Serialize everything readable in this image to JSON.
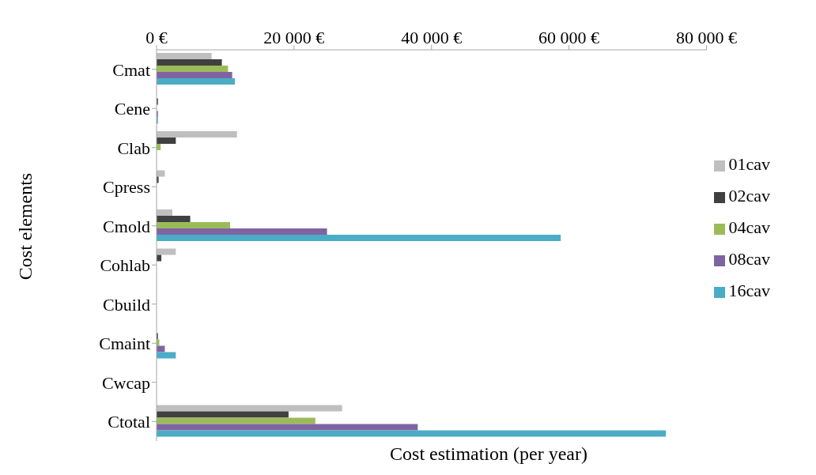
{
  "chart_data": {
    "type": "bar",
    "orientation": "horizontal",
    "xlabel": "Cost estimation (per year)",
    "ylabel": "Cost elements",
    "categories": [
      "Cmat",
      "Cene",
      "Clab",
      "Cpress",
      "Cmold",
      "Cohlab",
      "Cbuild",
      "Cmaint",
      "Cwcap",
      "Ctotal"
    ],
    "series": [
      {
        "name": "01cav",
        "color": "#bfbfbf",
        "values": [
          8000,
          0,
          11700,
          1200,
          2300,
          2800,
          0,
          0,
          0,
          27000
        ]
      },
      {
        "name": "02cav",
        "color": "#404040",
        "values": [
          9500,
          200,
          2800,
          300,
          4900,
          700,
          0,
          200,
          0,
          19200
        ]
      },
      {
        "name": "04cav",
        "color": "#9bbb59",
        "values": [
          10400,
          0,
          600,
          0,
          10700,
          0,
          0,
          400,
          0,
          23100
        ]
      },
      {
        "name": "08cav",
        "color": "#8064a2",
        "values": [
          11000,
          200,
          0,
          0,
          24800,
          0,
          0,
          1200,
          0,
          38000
        ]
      },
      {
        "name": "16cav",
        "color": "#4bacc6",
        "values": [
          11400,
          200,
          0,
          0,
          58800,
          0,
          0,
          2800,
          0,
          74100
        ]
      }
    ],
    "xlim": [
      0,
      80000
    ],
    "xticks": [
      {
        "value": 0,
        "label": "0 €"
      },
      {
        "value": 20000,
        "label": "20 000 €"
      },
      {
        "value": 40000,
        "label": "40 000 €"
      },
      {
        "value": 60000,
        "label": "60 000 €"
      },
      {
        "value": 80000,
        "label": "80 000 €"
      }
    ],
    "grid": false,
    "legend": "right"
  }
}
